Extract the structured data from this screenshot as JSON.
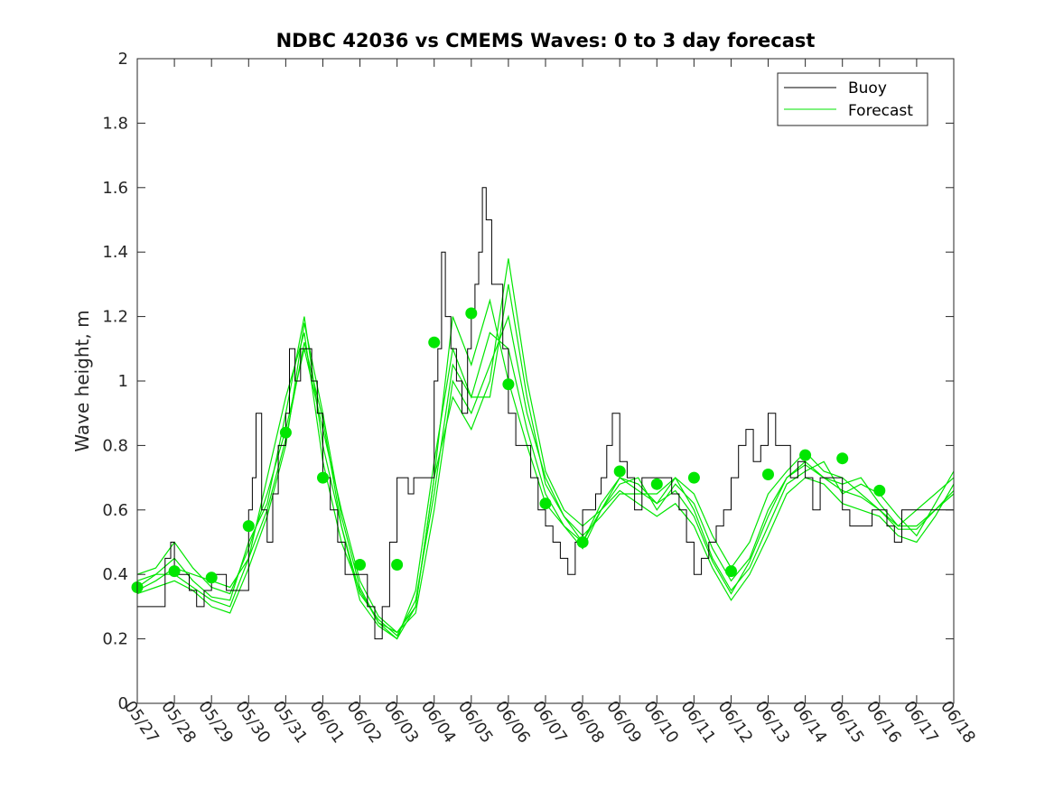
{
  "chart_data": {
    "type": "line",
    "title": "NDBC 42036 vs CMEMS Waves: 0 to 3 day forecast",
    "ylabel": "Wave height, m",
    "xlabel": "",
    "ylim": [
      0,
      2
    ],
    "yticks": [
      0,
      0.2,
      0.4,
      0.6,
      0.8,
      1,
      1.2,
      1.4,
      1.6,
      1.8,
      2
    ],
    "ytick_labels": [
      "0",
      "0.2",
      "0.4",
      "0.6",
      "0.8",
      "1",
      "1.2",
      "1.4",
      "1.6",
      "1.8",
      "2"
    ],
    "xlim": [
      0,
      22
    ],
    "xtick_labels": [
      "05/27",
      "05/28",
      "05/29",
      "05/30",
      "05/31",
      "06/01",
      "06/02",
      "06/03",
      "06/04",
      "06/05",
      "06/06",
      "06/07",
      "06/08",
      "06/09",
      "06/10",
      "06/11",
      "06/12",
      "06/13",
      "06/14",
      "06/15",
      "06/16",
      "06/17",
      "06/18"
    ],
    "legend": {
      "position": "top-right",
      "entries": [
        "Buoy",
        "Forecast"
      ]
    },
    "colors": {
      "buoy": "#000000",
      "forecast": "#00e600",
      "marker": "#00e600"
    },
    "buoy": {
      "name": "Buoy",
      "x": [
        0,
        0.6,
        0.75,
        0.9,
        1.0,
        1.2,
        1.4,
        1.6,
        1.8,
        2.0,
        2.2,
        2.4,
        2.6,
        2.8,
        3.0,
        3.1,
        3.2,
        3.35,
        3.5,
        3.65,
        3.8,
        4.0,
        4.1,
        4.25,
        4.4,
        4.55,
        4.7,
        4.85,
        5.0,
        5.2,
        5.4,
        5.6,
        5.8,
        6.0,
        6.2,
        6.4,
        6.6,
        6.8,
        7.0,
        7.15,
        7.3,
        7.45,
        7.6,
        7.8,
        8.0,
        8.1,
        8.2,
        8.3,
        8.45,
        8.6,
        8.75,
        8.9,
        9.0,
        9.1,
        9.2,
        9.3,
        9.4,
        9.55,
        9.7,
        9.85,
        10.0,
        10.2,
        10.4,
        10.6,
        10.8,
        11.0,
        11.2,
        11.4,
        11.6,
        11.8,
        12.0,
        12.2,
        12.35,
        12.5,
        12.65,
        12.8,
        13.0,
        13.2,
        13.4,
        13.6,
        13.8,
        14.0,
        14.2,
        14.4,
        14.6,
        14.8,
        15.0,
        15.2,
        15.4,
        15.6,
        15.8,
        16.0,
        16.2,
        16.4,
        16.6,
        16.8,
        17.0,
        17.2,
        17.4,
        17.6,
        17.8,
        18.0,
        18.2,
        18.4,
        18.6,
        18.8,
        19.0,
        19.2,
        19.4,
        19.6,
        19.8,
        20.0,
        20.2,
        20.4,
        20.6,
        20.8,
        21.0,
        21.2,
        21.4,
        21.6,
        21.8,
        22.0
      ],
      "values": [
        0.3,
        0.3,
        0.45,
        0.5,
        0.4,
        0.4,
        0.35,
        0.3,
        0.35,
        0.4,
        0.4,
        0.35,
        0.35,
        0.35,
        0.6,
        0.7,
        0.9,
        0.6,
        0.5,
        0.65,
        0.8,
        0.9,
        1.1,
        1.0,
        1.1,
        1.1,
        1.0,
        0.9,
        0.7,
        0.6,
        0.5,
        0.4,
        0.4,
        0.4,
        0.3,
        0.2,
        0.3,
        0.5,
        0.7,
        0.7,
        0.65,
        0.7,
        0.7,
        0.7,
        1.0,
        1.1,
        1.4,
        1.2,
        1.1,
        1.0,
        0.9,
        1.1,
        1.2,
        1.3,
        1.4,
        1.6,
        1.5,
        1.3,
        1.3,
        1.1,
        0.9,
        0.8,
        0.8,
        0.7,
        0.6,
        0.55,
        0.5,
        0.45,
        0.4,
        0.5,
        0.6,
        0.6,
        0.65,
        0.7,
        0.8,
        0.9,
        0.75,
        0.7,
        0.6,
        0.7,
        0.7,
        0.7,
        0.7,
        0.65,
        0.6,
        0.5,
        0.4,
        0.45,
        0.5,
        0.55,
        0.6,
        0.7,
        0.8,
        0.85,
        0.75,
        0.8,
        0.9,
        0.8,
        0.8,
        0.7,
        0.75,
        0.7,
        0.6,
        0.7,
        0.7,
        0.7,
        0.6,
        0.55,
        0.55,
        0.55,
        0.6,
        0.6,
        0.55,
        0.5,
        0.6,
        0.6,
        0.6,
        0.6,
        0.6,
        0.6,
        0.6,
        0.6
      ]
    },
    "forecast_series": [
      {
        "x": [
          0,
          0.5,
          1.0,
          1.5,
          2.0,
          2.5,
          3.0,
          3.5,
          4.0,
          4.5,
          5.0,
          5.5,
          6.0,
          6.5,
          7.0,
          7.5,
          8.0,
          8.5,
          9.0,
          9.5,
          10.0,
          10.5,
          11.0,
          11.5,
          12.0,
          12.5,
          13.0,
          13.5,
          14.0,
          14.5,
          15.0,
          15.5,
          16.0,
          16.5,
          17.0,
          17.5,
          18.0,
          18.5,
          19.0,
          19.5,
          20.0,
          20.5,
          21.0,
          21.5,
          22.0
        ],
        "values": [
          0.35,
          0.38,
          0.42,
          0.4,
          0.38,
          0.36,
          0.45,
          0.7,
          0.95,
          1.15,
          0.75,
          0.5,
          0.35,
          0.25,
          0.22,
          0.3,
          0.7,
          1.2,
          1.05,
          1.25,
          1.0,
          0.8,
          0.62,
          0.55,
          0.5,
          0.62,
          0.7,
          0.68,
          0.62,
          0.7,
          0.65,
          0.52,
          0.42,
          0.5,
          0.65,
          0.72,
          0.78,
          0.72,
          0.7,
          0.65,
          0.6,
          0.55,
          0.6,
          0.65,
          0.7
        ]
      },
      {
        "x": [
          0,
          0.5,
          1.0,
          1.5,
          2.0,
          2.5,
          3.0,
          3.5,
          4.0,
          4.5,
          5.0,
          5.5,
          6.0,
          6.5,
          7.0,
          7.5,
          8.0,
          8.5,
          9.0,
          9.5,
          10.0,
          10.5,
          11.0,
          11.5,
          12.0,
          12.5,
          13.0,
          13.5,
          14.0,
          14.5,
          15.0,
          15.5,
          16.0,
          16.5,
          17.0,
          17.5,
          18.0,
          18.5,
          19.0,
          19.5,
          20.0,
          20.5,
          21.0,
          21.5,
          22.0
        ],
        "values": [
          0.38,
          0.4,
          0.45,
          0.38,
          0.33,
          0.32,
          0.5,
          0.62,
          0.9,
          1.2,
          0.8,
          0.55,
          0.32,
          0.24,
          0.2,
          0.35,
          0.75,
          1.1,
          0.95,
          1.15,
          1.1,
          0.85,
          0.65,
          0.55,
          0.48,
          0.6,
          0.68,
          0.7,
          0.6,
          0.68,
          0.62,
          0.48,
          0.38,
          0.45,
          0.6,
          0.7,
          0.75,
          0.7,
          0.68,
          0.7,
          0.62,
          0.55,
          0.55,
          0.6,
          0.65
        ]
      },
      {
        "x": [
          0,
          0.5,
          1.0,
          1.5,
          2.0,
          2.5,
          3.0,
          3.5,
          4.0,
          4.5,
          5.0,
          5.5,
          6.0,
          6.5,
          7.0,
          7.5,
          8.0,
          8.5,
          9.0,
          9.5,
          10.0,
          10.5,
          11.0,
          11.5,
          12.0,
          12.5,
          13.0,
          13.5,
          14.0,
          14.5,
          15.0,
          15.5,
          16.0,
          16.5,
          17.0,
          17.5,
          18.0,
          18.5,
          19.0,
          19.5,
          20.0,
          20.5,
          21.0,
          21.5,
          22.0
        ],
        "values": [
          0.4,
          0.42,
          0.5,
          0.42,
          0.36,
          0.34,
          0.48,
          0.65,
          0.85,
          1.1,
          0.85,
          0.6,
          0.38,
          0.27,
          0.22,
          0.28,
          0.6,
          1.0,
          0.9,
          1.05,
          1.2,
          0.9,
          0.7,
          0.58,
          0.52,
          0.58,
          0.65,
          0.65,
          0.65,
          0.7,
          0.6,
          0.45,
          0.35,
          0.42,
          0.55,
          0.68,
          0.72,
          0.75,
          0.65,
          0.68,
          0.65,
          0.58,
          0.52,
          0.62,
          0.72
        ]
      },
      {
        "x": [
          0,
          0.5,
          1.0,
          1.5,
          2.0,
          2.5,
          3.0,
          3.5,
          4.0,
          4.5,
          5.0,
          5.5,
          6.0,
          6.5,
          7.0,
          7.5,
          8.0,
          8.5,
          9.0,
          9.5,
          10.0,
          10.5,
          11.0,
          11.5,
          12.0,
          12.5,
          13.0,
          13.5,
          14.0,
          14.5,
          15.0,
          15.5,
          16.0,
          16.5,
          17.0,
          17.5,
          18.0,
          18.5,
          19.0,
          19.5,
          20.0,
          20.5,
          21.0,
          21.5,
          22.0
        ],
        "values": [
          0.34,
          0.36,
          0.38,
          0.35,
          0.3,
          0.28,
          0.42,
          0.58,
          0.8,
          1.18,
          0.9,
          0.58,
          0.36,
          0.25,
          0.2,
          0.3,
          0.7,
          0.95,
          0.85,
          1.0,
          1.38,
          1.0,
          0.72,
          0.6,
          0.55,
          0.6,
          0.66,
          0.62,
          0.58,
          0.62,
          0.55,
          0.42,
          0.32,
          0.4,
          0.52,
          0.65,
          0.7,
          0.68,
          0.62,
          0.6,
          0.58,
          0.52,
          0.5,
          0.58,
          0.68
        ]
      },
      {
        "x": [
          0,
          0.5,
          1.0,
          1.5,
          2.0,
          2.5,
          3.0,
          3.5,
          4.0,
          4.5,
          5.0,
          5.5,
          6.0,
          6.5,
          7.0,
          7.5,
          8.0,
          8.5,
          9.0,
          9.5,
          10.0,
          10.5,
          11.0,
          11.5,
          12.0,
          12.5,
          13.0,
          13.5,
          14.0,
          14.5,
          15.0,
          15.5,
          16.0,
          16.5,
          17.0,
          17.5,
          18.0,
          18.5,
          19.0,
          19.5,
          20.0,
          20.5,
          21.0,
          21.5,
          22.0
        ],
        "values": [
          0.36,
          0.4,
          0.4,
          0.36,
          0.32,
          0.3,
          0.45,
          0.6,
          0.82,
          1.12,
          0.88,
          0.55,
          0.34,
          0.26,
          0.21,
          0.32,
          0.65,
          1.05,
          0.95,
          0.95,
          1.3,
          0.95,
          0.68,
          0.58,
          0.5,
          0.6,
          0.7,
          0.66,
          0.62,
          0.66,
          0.58,
          0.44,
          0.34,
          0.44,
          0.58,
          0.7,
          0.74,
          0.7,
          0.66,
          0.64,
          0.6,
          0.54,
          0.54,
          0.6,
          0.66
        ]
      }
    ],
    "forecast_markers": {
      "x": [
        0,
        1,
        2,
        3,
        4,
        5,
        6,
        7,
        8,
        9,
        10,
        11,
        12,
        13,
        14,
        15,
        16,
        17,
        18,
        19,
        20
      ],
      "values": [
        0.36,
        0.41,
        0.39,
        0.55,
        0.84,
        0.7,
        0.43,
        0.43,
        1.12,
        1.21,
        0.99,
        0.62,
        0.5,
        0.72,
        0.68,
        0.7,
        0.41,
        0.71,
        0.77,
        0.76,
        0.66
      ]
    }
  }
}
